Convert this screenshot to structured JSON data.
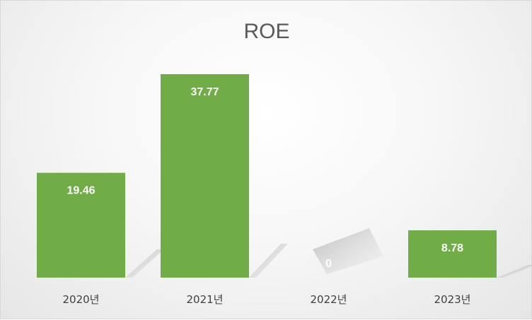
{
  "chart_data": {
    "type": "bar",
    "title": "ROE",
    "categories": [
      "2020년",
      "2021년",
      "2022년",
      "2023년"
    ],
    "values": [
      19.46,
      37.77,
      0,
      8.78
    ],
    "data_labels": [
      "19.46",
      "37.77",
      "0",
      "8.78"
    ],
    "xlabel": "",
    "ylabel": "",
    "ylim": [
      0,
      40
    ],
    "grid": false,
    "legend": "none",
    "bar_color": "#70AD47",
    "label_color": "#FFFFFF"
  }
}
